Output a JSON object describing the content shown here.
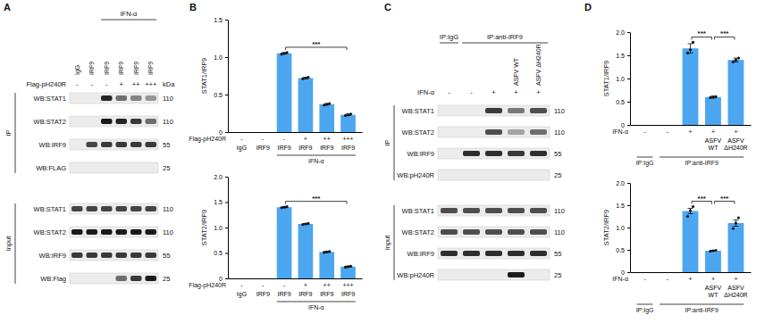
{
  "panel_labels": [
    "A",
    "B",
    "C",
    "D"
  ],
  "blots": [
    {
      "group_top": [
        null,
        null,
        "IFN-α",
        "IFN-α",
        "IFN-α",
        "IFN-α"
      ],
      "lane_labels": [
        "IgG",
        "IRF9",
        "IRF9",
        "IRF9",
        "IRF9",
        "IRF9"
      ],
      "sign_row": {
        "label": "Flag-pH240R",
        "values": [
          "-",
          "-",
          "-",
          "+",
          "++",
          "+++"
        ]
      },
      "kda_header": "kDa",
      "sections": [
        {
          "label": "IP",
          "rows": [
            {
              "label": "WB:STAT1",
              "kda": 110,
              "bands": [
                0,
                0,
                0.95,
                0.6,
                0.5,
                0.4
              ]
            },
            {
              "label": "WB:STAT2",
              "kda": 110,
              "bands": [
                0,
                0,
                1,
                0.95,
                0.85,
                0.6
              ]
            },
            {
              "label": "WB:IRF9",
              "kda": 55,
              "bands": [
                0,
                0.8,
                0.85,
                0.85,
                0.85,
                0.85
              ]
            },
            {
              "label": "WB:FLAG",
              "kda": 25,
              "bands": [
                0,
                0,
                0,
                0,
                0,
                0
              ]
            }
          ]
        },
        {
          "label": "Input",
          "rows": [
            {
              "label": "WB:STAT1",
              "kda": 110,
              "bands": [
                0.8,
                0.8,
                0.8,
                0.8,
                0.8,
                0.8
              ]
            },
            {
              "label": "WB:STAT2",
              "kda": 110,
              "bands": [
                1,
                1,
                1,
                1,
                1,
                1
              ]
            },
            {
              "label": "WB:IRF9",
              "kda": 55,
              "bands": [
                0.85,
                0.85,
                0.85,
                0.85,
                0.85,
                0.85
              ]
            },
            {
              "label": "WB:Flag",
              "kda": 25,
              "bands": [
                0,
                0,
                0,
                0.6,
                0.85,
                1
              ]
            }
          ]
        }
      ]
    },
    {
      "group_top": [
        "IP:IgG",
        "IP:anti-IRF9",
        "IP:anti-IRF9",
        "IP:anti-IRF9",
        "IP:anti-IRF9"
      ],
      "lane_labels": [
        null,
        null,
        null,
        "ASFV WT",
        "ASFV ΔH240R"
      ],
      "sign_row": {
        "label": "IFN-α",
        "values": [
          "-",
          "-",
          "+",
          "+",
          "+"
        ]
      },
      "sections": [
        {
          "label": "IP",
          "rows": [
            {
              "label": "WB:STAT1",
              "kda": 110,
              "bands": [
                0,
                0,
                0.85,
                0.55,
                0.75
              ]
            },
            {
              "label": "WB:STAT2",
              "kda": 110,
              "bands": [
                0,
                0,
                0.75,
                0.35,
                0.6
              ]
            },
            {
              "label": "WB:IRF9",
              "kda": 55,
              "bands": [
                0,
                0.9,
                0.9,
                0.85,
                0.9
              ]
            },
            {
              "label": "WB:pH240R",
              "kda": 25,
              "bands": [
                0,
                0,
                0,
                0,
                0
              ]
            }
          ]
        },
        {
          "label": "Input",
          "rows": [
            {
              "label": "WB:STAT1",
              "kda": 110,
              "bands": [
                0.75,
                0.75,
                0.75,
                0.75,
                0.75
              ]
            },
            {
              "label": "WB:STAT2",
              "kda": 110,
              "bands": [
                0.75,
                0.75,
                0.75,
                0.75,
                0.75
              ]
            },
            {
              "label": "WB:IRF9",
              "kda": 55,
              "bands": [
                0.9,
                0.9,
                0.9,
                0.9,
                0.9
              ]
            },
            {
              "label": "WB:pH240R",
              "kda": 25,
              "bands": [
                0,
                0,
                0,
                1,
                0
              ]
            }
          ]
        }
      ]
    }
  ],
  "chart_data": [
    {
      "type": "bar",
      "ylabel": "STAT1/IRF9",
      "color": "#4da6f0",
      "categories": [
        "IgG",
        "IRF9",
        "IRF9",
        "IRF9",
        "IRF9",
        "IRF9"
      ],
      "sign_row": {
        "label": "Flag-pH240R",
        "values": [
          "-",
          "-",
          "-",
          "+",
          "++",
          "+++"
        ]
      },
      "groups": [
        null,
        null,
        "IFN-α",
        "IFN-α",
        "IFN-α",
        "IFN-α"
      ],
      "values": [
        0,
        0,
        1.05,
        0.72,
        0.37,
        0.23
      ],
      "errors": [
        null,
        null,
        0.01,
        0.01,
        0.01,
        0.01
      ],
      "replicates": [
        null,
        null,
        [
          1.04,
          1.05,
          1.06
        ],
        [
          0.71,
          0.72,
          0.73
        ],
        [
          0.36,
          0.37,
          0.38
        ],
        [
          0.22,
          0.23,
          0.24
        ]
      ],
      "significance": [
        {
          "label": "***",
          "between": [
            2,
            5
          ]
        }
      ],
      "ylim": [
        0,
        1.5
      ],
      "yticks": [
        0,
        0.5,
        {
          "value": 1,
          "label": "1.0"
        },
        1.5
      ]
    },
    {
      "type": "bar",
      "ylabel": "STAT2/IRF9",
      "color": "#4da6f0",
      "categories": [
        "IgG",
        "IRF9",
        "IRF9",
        "IRF9",
        "IRF9",
        "IRF9"
      ],
      "sign_row": {
        "label": "Flag-pH240R",
        "values": [
          "-",
          "-",
          "-",
          "+",
          "++",
          "+++"
        ]
      },
      "groups": [
        null,
        null,
        "IFN-α",
        "IFN-α",
        "IFN-α",
        "IFN-α"
      ],
      "values": [
        0,
        0,
        1.4,
        1.07,
        0.52,
        0.23
      ],
      "errors": [
        null,
        null,
        0.01,
        0.01,
        0.01,
        0.01
      ],
      "replicates": [
        null,
        null,
        [
          1.39,
          1.4,
          1.41
        ],
        [
          1.06,
          1.07,
          1.08
        ],
        [
          0.51,
          0.52,
          0.53
        ],
        [
          0.22,
          0.23,
          0.24
        ]
      ],
      "significance": [
        {
          "label": "***",
          "between": [
            2,
            5
          ]
        }
      ],
      "ylim": [
        0,
        2
      ],
      "yticks": [
        0,
        0.5,
        {
          "value": 1,
          "label": "1.0"
        },
        1.5,
        {
          "value": 2,
          "label": "2.0"
        }
      ]
    },
    {
      "type": "bar",
      "ylabel": "STAT1/IRF9",
      "color": "#4da6f0",
      "categories": [
        null,
        null,
        null,
        "ASFV WT",
        "ASFV ΔH240R"
      ],
      "sign_row": {
        "label": "IFN-α",
        "values": [
          "-",
          "-",
          "+",
          "+",
          "+"
        ]
      },
      "groups": [
        "IP:IgG",
        "IP:anti-IRF9",
        "IP:anti-IRF9",
        "IP:anti-IRF9",
        "IP:anti-IRF9"
      ],
      "values": [
        0,
        0,
        1.65,
        0.6,
        1.4
      ],
      "errors": [
        null,
        null,
        0.1,
        0.02,
        0.04
      ],
      "replicates": [
        null,
        null,
        [
          1.55,
          1.62,
          1.78
        ],
        [
          0.59,
          0.6,
          0.61
        ],
        [
          1.36,
          1.4,
          1.44
        ]
      ],
      "significance": [
        {
          "label": "***",
          "between": [
            2,
            3
          ]
        },
        {
          "label": "***",
          "between": [
            3,
            4
          ]
        }
      ],
      "ylim": [
        0,
        2
      ],
      "yticks": [
        0,
        0.5,
        {
          "value": 1,
          "label": "1.0"
        },
        1.5,
        {
          "value": 2,
          "label": "2.0"
        }
      ]
    },
    {
      "type": "bar",
      "ylabel": "STAT2/IRF9",
      "color": "#4da6f0",
      "categories": [
        null,
        null,
        null,
        "ASFV WT",
        "ASFV ΔH240R"
      ],
      "sign_row": {
        "label": "IFN-α",
        "values": [
          "-",
          "-",
          "+",
          "+",
          "+"
        ]
      },
      "groups": [
        "IP:IgG",
        "IP:anti-IRF9",
        "IP:anti-IRF9",
        "IP:anti-IRF9",
        "IP:anti-IRF9"
      ],
      "values": [
        0,
        0,
        1.37,
        0.48,
        1.1
      ],
      "errors": [
        null,
        null,
        0.06,
        0.01,
        0.07
      ],
      "replicates": [
        null,
        null,
        [
          1.25,
          1.38,
          1.47
        ],
        [
          0.47,
          0.48,
          0.49
        ],
        [
          0.98,
          1.1,
          1.22
        ]
      ],
      "significance": [
        {
          "label": "***",
          "between": [
            2,
            3
          ]
        },
        {
          "label": "***",
          "between": [
            3,
            4
          ]
        }
      ],
      "ylim": [
        0,
        2
      ],
      "yticks": [
        0,
        0.5,
        {
          "value": 1,
          "label": "1.0"
        },
        1.5,
        {
          "value": 2,
          "label": "2.0"
        }
      ]
    }
  ]
}
